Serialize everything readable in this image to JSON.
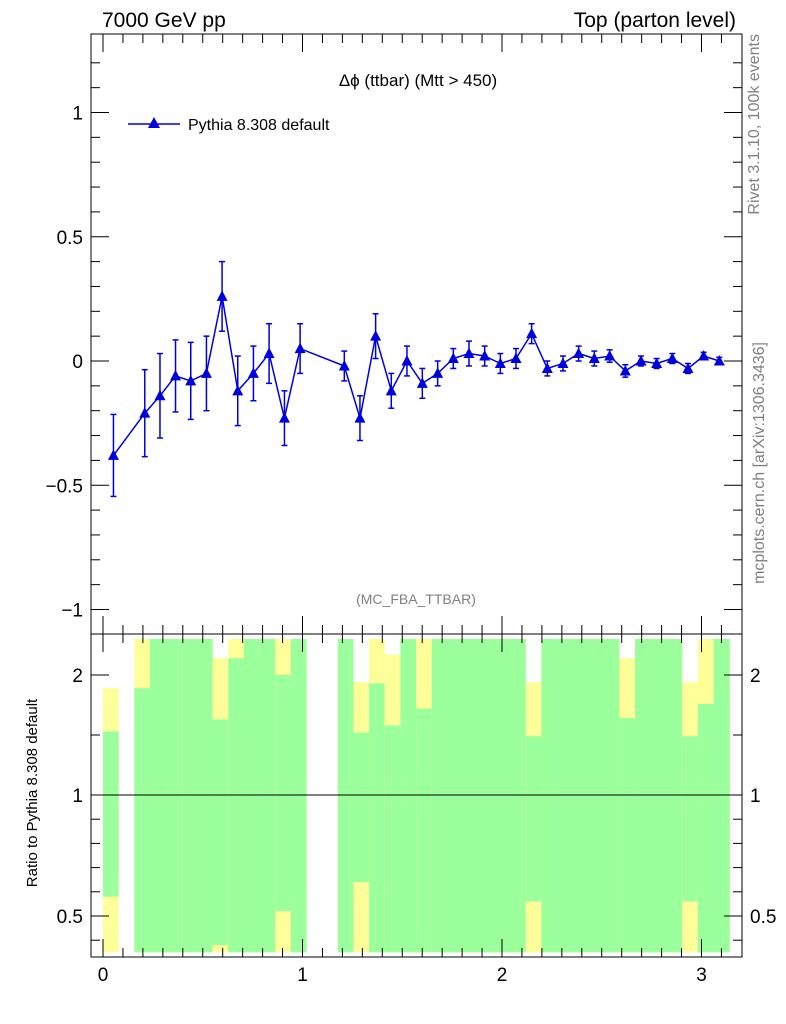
{
  "header": {
    "left": "7000 GeV pp",
    "right": "Top (parton level)"
  },
  "side": {
    "top": "Rivet 3.1.10,  100k events",
    "bottom": "mcplots.cern.ch [arXiv:1306.3436]"
  },
  "colors": {
    "series": "#0000dd",
    "band_inner": "#9bff9b",
    "band_outer": "#ffff99"
  },
  "chart_data": [
    {
      "type": "line",
      "title": "Δϕ (ttbar) (Mtt > 450)",
      "watermark": "(MC_FBA_TTBAR)",
      "xlim": [
        -0.05,
        3.19
      ],
      "ylim": [
        -1.1,
        1.3
      ],
      "xticks": [
        0,
        1,
        2,
        3
      ],
      "yticks": [
        -1,
        -0.5,
        0,
        0.5,
        1
      ],
      "ytick_labels": [
        "−1",
        "−0.5",
        "0",
        "0.5",
        "1"
      ],
      "legend": {
        "position": "top-left",
        "entries": [
          "Pythia 8.308 default"
        ]
      },
      "series": [
        {
          "name": "Pythia 8.308 default",
          "marker": "triangle",
          "x": [
            0.0524,
            0.2094,
            0.2856,
            0.3635,
            0.4398,
            0.5185,
            0.5969,
            0.6755,
            0.754,
            0.8325,
            0.9095,
            0.988,
            1.2096,
            1.288,
            1.3665,
            1.445,
            1.5236,
            1.6006,
            1.6775,
            1.756,
            1.8345,
            1.9131,
            1.9916,
            2.0701,
            2.1486,
            2.2271,
            2.3056,
            2.3841,
            2.4627,
            2.5396,
            2.6181,
            2.6966,
            2.7751,
            2.8537,
            2.9322,
            3.0107,
            3.0892
          ],
          "y": [
            -0.38,
            -0.21,
            -0.14,
            -0.06,
            -0.08,
            -0.05,
            0.26,
            -0.12,
            -0.05,
            0.03,
            -0.23,
            0.05,
            -0.02,
            -0.23,
            0.1,
            -0.12,
            0.0,
            -0.09,
            -0.05,
            0.01,
            0.03,
            0.02,
            -0.01,
            0.01,
            0.11,
            -0.03,
            -0.01,
            0.03,
            0.01,
            0.02,
            -0.04,
            0.0,
            -0.01,
            0.01,
            -0.03,
            0.02,
            0.0
          ],
          "yerr": [
            0.165,
            0.175,
            0.17,
            0.145,
            0.155,
            0.15,
            0.14,
            0.14,
            0.11,
            0.12,
            0.11,
            0.1,
            0.06,
            0.09,
            0.09,
            0.07,
            0.06,
            0.06,
            0.05,
            0.04,
            0.05,
            0.04,
            0.04,
            0.04,
            0.04,
            0.03,
            0.03,
            0.03,
            0.03,
            0.025,
            0.025,
            0.02,
            0.02,
            0.02,
            0.02,
            0.015,
            0.015
          ]
        }
      ]
    },
    {
      "type": "area",
      "ylabel": "Ratio to Pythia 8.308 default",
      "xlim": [
        -0.05,
        3.19
      ],
      "ylim": [
        0.35,
        2.3
      ],
      "xticks": [
        0,
        1,
        2,
        3
      ],
      "yticks": [
        0.5,
        1,
        2
      ],
      "ytick_labels": [
        "0.5",
        "1",
        "2"
      ],
      "reference_line": 1,
      "bins": [
        {
          "x0": 0.0,
          "x1": 0.0785,
          "inner": [
            0.58,
            1.53
          ],
          "outer": [
            0.35,
            1.89
          ]
        },
        {
          "x0": 0.0785,
          "x1": 0.157,
          "inner": null,
          "outer": null
        },
        {
          "x0": 0.157,
          "x1": 0.2355,
          "inner": [
            0.35,
            1.89
          ],
          "outer": [
            0.35,
            2.3
          ]
        },
        {
          "x0": 0.2355,
          "x1": 0.314,
          "inner": [
            0.35,
            2.3
          ],
          "outer": [
            0.35,
            2.3
          ]
        },
        {
          "x0": 0.314,
          "x1": 0.3925,
          "inner": [
            0.35,
            2.3
          ],
          "outer": [
            0.35,
            2.3
          ]
        },
        {
          "x0": 0.3925,
          "x1": 0.471,
          "inner": [
            0.35,
            2.3
          ],
          "outer": [
            0.35,
            2.3
          ]
        },
        {
          "x0": 0.471,
          "x1": 0.5495,
          "inner": [
            0.35,
            2.3
          ],
          "outer": [
            0.35,
            2.3
          ]
        },
        {
          "x0": 0.5495,
          "x1": 0.628,
          "inner": [
            0.38,
            1.63
          ],
          "outer": [
            0.35,
            2.14
          ]
        },
        {
          "x0": 0.628,
          "x1": 0.7065,
          "inner": [
            0.35,
            2.14
          ],
          "outer": [
            0.35,
            2.3
          ]
        },
        {
          "x0": 0.7065,
          "x1": 0.785,
          "inner": [
            0.35,
            2.3
          ],
          "outer": [
            0.35,
            2.3
          ]
        },
        {
          "x0": 0.785,
          "x1": 0.8635,
          "inner": [
            0.35,
            2.3
          ],
          "outer": [
            0.35,
            2.3
          ]
        },
        {
          "x0": 0.8635,
          "x1": 0.942,
          "inner": [
            0.52,
            2.0
          ],
          "outer": [
            0.35,
            2.3
          ]
        },
        {
          "x0": 0.942,
          "x1": 1.0205,
          "inner": [
            0.35,
            2.3
          ],
          "outer": [
            0.35,
            2.3
          ]
        },
        {
          "x0": 1.0205,
          "x1": 1.177,
          "inner": null,
          "outer": null
        },
        {
          "x0": 1.177,
          "x1": 1.2555,
          "inner": [
            0.35,
            2.3
          ],
          "outer": [
            0.35,
            2.3
          ]
        },
        {
          "x0": 1.2555,
          "x1": 1.334,
          "inner": [
            0.64,
            1.52
          ],
          "outer": [
            0.35,
            1.94
          ]
        },
        {
          "x0": 1.334,
          "x1": 1.4125,
          "inner": [
            0.35,
            1.93
          ],
          "outer": [
            0.35,
            2.3
          ]
        },
        {
          "x0": 1.4125,
          "x1": 1.491,
          "inner": [
            0.35,
            1.58
          ],
          "outer": [
            0.35,
            2.17
          ]
        },
        {
          "x0": 1.491,
          "x1": 1.5695,
          "inner": [
            0.35,
            2.3
          ],
          "outer": [
            0.35,
            2.3
          ]
        },
        {
          "x0": 1.5695,
          "x1": 1.648,
          "inner": [
            0.35,
            1.72
          ],
          "outer": [
            0.35,
            2.3
          ]
        },
        {
          "x0": 1.648,
          "x1": 2.119,
          "inner": [
            0.35,
            2.3
          ],
          "outer": [
            0.35,
            2.3
          ]
        },
        {
          "x0": 2.119,
          "x1": 2.1975,
          "inner": [
            0.56,
            1.49
          ],
          "outer": [
            0.35,
            1.94
          ]
        },
        {
          "x0": 2.1975,
          "x1": 2.276,
          "inner": [
            0.35,
            2.3
          ],
          "outer": [
            0.35,
            2.3
          ]
        },
        {
          "x0": 2.276,
          "x1": 2.5885,
          "inner": [
            0.35,
            2.3
          ],
          "outer": [
            0.35,
            2.3
          ]
        },
        {
          "x0": 2.5885,
          "x1": 2.667,
          "inner": [
            0.35,
            1.64
          ],
          "outer": [
            0.35,
            2.14
          ]
        },
        {
          "x0": 2.667,
          "x1": 2.9035,
          "inner": [
            0.35,
            2.3
          ],
          "outer": [
            0.35,
            2.3
          ]
        },
        {
          "x0": 2.9035,
          "x1": 2.982,
          "inner": [
            0.56,
            1.49
          ],
          "outer": [
            0.35,
            1.94
          ]
        },
        {
          "x0": 2.982,
          "x1": 3.0605,
          "inner": [
            0.35,
            1.76
          ],
          "outer": [
            0.35,
            2.3
          ]
        },
        {
          "x0": 3.0605,
          "x1": 3.1415,
          "inner": [
            0.35,
            2.3
          ],
          "outer": [
            0.35,
            2.3
          ]
        }
      ]
    }
  ]
}
